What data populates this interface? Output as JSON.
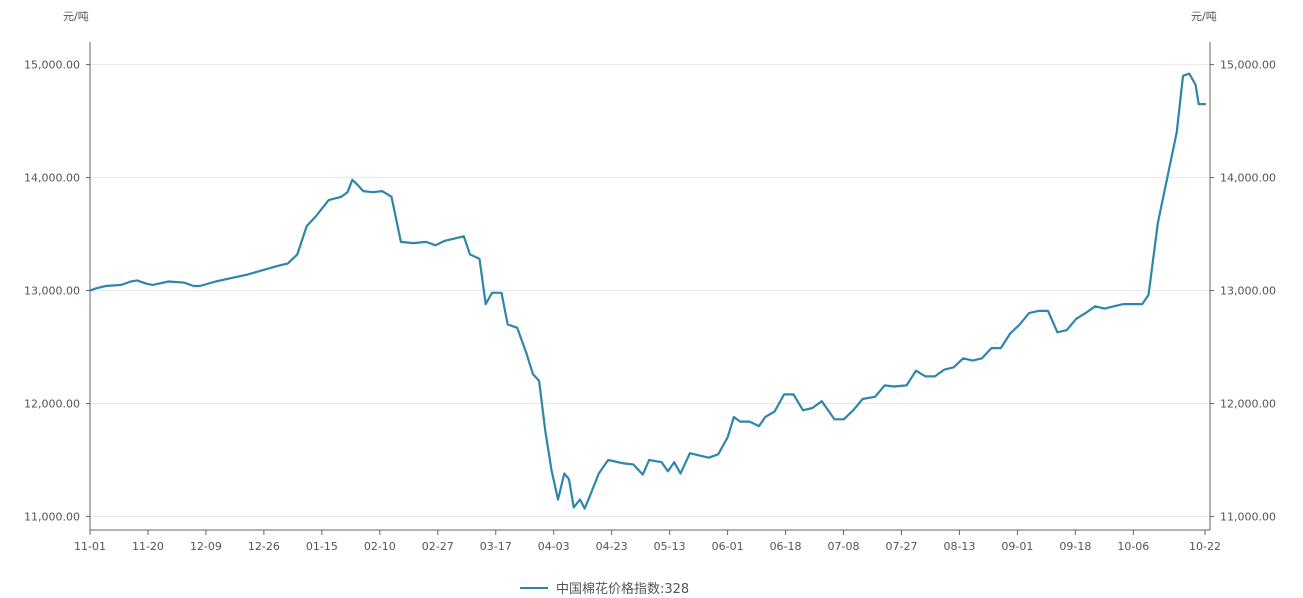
{
  "chart_data": {
    "type": "line",
    "title": "",
    "y_unit_left": "元/吨",
    "y_unit_right": "元/吨",
    "ylim": [
      10880,
      15200
    ],
    "y_ticks": [
      11000,
      12000,
      13000,
      14000,
      15000
    ],
    "y_tick_labels": [
      "11,000.00",
      "12,000.00",
      "13,000.00",
      "14,000.00",
      "15,000.00"
    ],
    "x_tick_labels": [
      "11-01",
      "11-20",
      "12-09",
      "12-26",
      "01-15",
      "02-10",
      "02-27",
      "03-17",
      "04-03",
      "04-23",
      "05-13",
      "06-01",
      "06-18",
      "07-08",
      "07-27",
      "08-13",
      "09-01",
      "09-18",
      "10-06",
      "10-22"
    ],
    "grid": "horizontal",
    "legend": "bottom-center",
    "series": [
      {
        "name": "中国棉花价格指数:328",
        "color": "#2e86ab",
        "points": [
          [
            0.0,
            13000
          ],
          [
            0.2,
            13020
          ],
          [
            0.5,
            13040
          ],
          [
            1.0,
            13050
          ],
          [
            1.3,
            13080
          ],
          [
            1.5,
            13090
          ],
          [
            1.8,
            13060
          ],
          [
            2.0,
            13050
          ],
          [
            2.5,
            13080
          ],
          [
            3.0,
            13070
          ],
          [
            3.3,
            13040
          ],
          [
            3.5,
            13040
          ],
          [
            4.0,
            13080
          ],
          [
            4.5,
            13110
          ],
          [
            5.0,
            13140
          ],
          [
            5.5,
            13180
          ],
          [
            6.0,
            13220
          ],
          [
            6.3,
            13240
          ],
          [
            6.6,
            13320
          ],
          [
            6.9,
            13570
          ],
          [
            7.2,
            13660
          ],
          [
            7.6,
            13800
          ],
          [
            8.0,
            13830
          ],
          [
            8.2,
            13870
          ],
          [
            8.35,
            13980
          ],
          [
            8.5,
            13940
          ],
          [
            8.7,
            13880
          ],
          [
            9.0,
            13870
          ],
          [
            9.3,
            13880
          ],
          [
            9.6,
            13830
          ],
          [
            9.9,
            13430
          ],
          [
            10.3,
            13420
          ],
          [
            10.7,
            13430
          ],
          [
            11.0,
            13400
          ],
          [
            11.3,
            13440
          ],
          [
            11.6,
            13460
          ],
          [
            11.9,
            13480
          ],
          [
            12.1,
            13320
          ],
          [
            12.4,
            13280
          ],
          [
            12.6,
            12880
          ],
          [
            12.8,
            12980
          ],
          [
            13.1,
            12980
          ],
          [
            13.3,
            12700
          ],
          [
            13.6,
            12670
          ],
          [
            13.9,
            12440
          ],
          [
            14.1,
            12260
          ],
          [
            14.3,
            12200
          ],
          [
            14.5,
            11750
          ],
          [
            14.7,
            11400
          ],
          [
            14.9,
            11150
          ],
          [
            15.1,
            11380
          ],
          [
            15.25,
            11330
          ],
          [
            15.4,
            11080
          ],
          [
            15.6,
            11150
          ],
          [
            15.75,
            11070
          ],
          [
            15.9,
            11170
          ],
          [
            16.2,
            11380
          ],
          [
            16.5,
            11500
          ],
          [
            17.0,
            11470
          ],
          [
            17.3,
            11460
          ],
          [
            17.6,
            11370
          ],
          [
            17.8,
            11500
          ],
          [
            18.2,
            11480
          ],
          [
            18.4,
            11400
          ],
          [
            18.6,
            11480
          ],
          [
            18.8,
            11380
          ],
          [
            19.1,
            11560
          ],
          [
            19.4,
            11540
          ],
          [
            19.7,
            11520
          ],
          [
            20.0,
            11550
          ],
          [
            20.3,
            11700
          ],
          [
            20.5,
            11880
          ],
          [
            20.7,
            11840
          ],
          [
            21.0,
            11840
          ],
          [
            21.3,
            11800
          ],
          [
            21.5,
            11880
          ],
          [
            21.8,
            11930
          ],
          [
            22.1,
            12080
          ],
          [
            22.4,
            12080
          ],
          [
            22.7,
            11940
          ],
          [
            23.0,
            11960
          ],
          [
            23.3,
            12020
          ],
          [
            23.7,
            11860
          ],
          [
            24.0,
            11860
          ],
          [
            24.3,
            11940
          ],
          [
            24.6,
            12040
          ],
          [
            25.0,
            12060
          ],
          [
            25.3,
            12160
          ],
          [
            25.6,
            12150
          ],
          [
            26.0,
            12160
          ],
          [
            26.3,
            12290
          ],
          [
            26.6,
            12240
          ],
          [
            26.9,
            12240
          ],
          [
            27.2,
            12300
          ],
          [
            27.5,
            12320
          ],
          [
            27.8,
            12400
          ],
          [
            28.1,
            12380
          ],
          [
            28.4,
            12400
          ],
          [
            28.7,
            12490
          ],
          [
            29.0,
            12490
          ],
          [
            29.3,
            12620
          ],
          [
            29.6,
            12700
          ],
          [
            29.9,
            12800
          ],
          [
            30.2,
            12820
          ],
          [
            30.5,
            12820
          ],
          [
            30.8,
            12630
          ],
          [
            31.1,
            12650
          ],
          [
            31.4,
            12750
          ],
          [
            31.7,
            12800
          ],
          [
            32.0,
            12860
          ],
          [
            32.3,
            12840
          ],
          [
            32.6,
            12860
          ],
          [
            32.9,
            12880
          ],
          [
            33.2,
            12880
          ],
          [
            33.5,
            12880
          ],
          [
            33.7,
            12960
          ],
          [
            34.0,
            13600
          ],
          [
            34.3,
            14000
          ],
          [
            34.6,
            14400
          ],
          [
            34.8,
            14900
          ],
          [
            35.0,
            14920
          ],
          [
            35.2,
            14820
          ],
          [
            35.3,
            14650
          ],
          [
            35.5,
            14650
          ]
        ]
      }
    ]
  },
  "legend": {
    "label": "中国棉花价格指数:328"
  }
}
